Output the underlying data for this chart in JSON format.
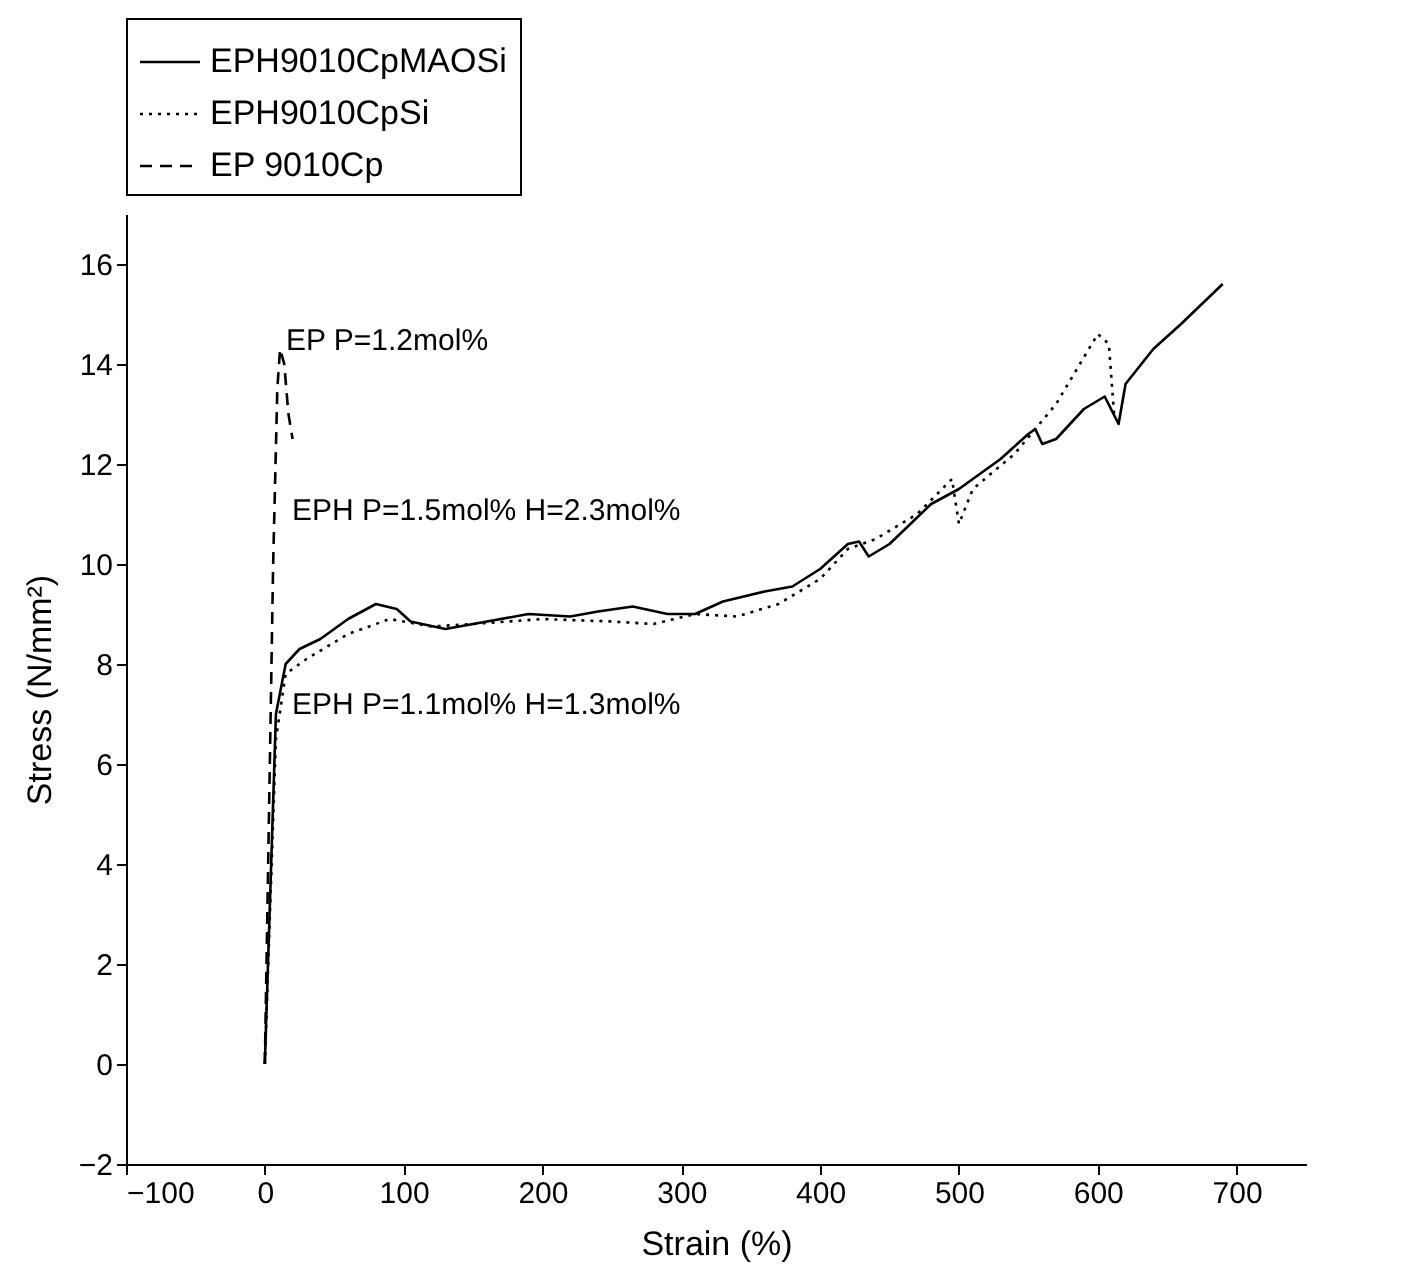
{
  "chart_data": {
    "type": "line",
    "xlabel": "Strain (%)",
    "ylabel": "Stress (N/mm²)",
    "xlim": [
      -100,
      750
    ],
    "xticks": [
      -100,
      0,
      100,
      200,
      300,
      400,
      500,
      600,
      700
    ],
    "ylim": [
      -2,
      17
    ],
    "yticks": [
      -2,
      0,
      2,
      4,
      6,
      8,
      10,
      12,
      14,
      16
    ],
    "grid": false,
    "legend": "top",
    "marker": "none",
    "series": [
      {
        "name": "EPH9010CpMAOSi",
        "color": "#000000",
        "line_style": "solid",
        "x": [
          0,
          8,
          15,
          25,
          40,
          60,
          80,
          95,
          105,
          130,
          160,
          190,
          220,
          240,
          265,
          290,
          310,
          330,
          360,
          380,
          400,
          420,
          428,
          435,
          450,
          480,
          500,
          530,
          550,
          555,
          560,
          570,
          590,
          605,
          615,
          620,
          640,
          660,
          690
        ],
        "values": [
          0,
          7,
          8,
          8.3,
          8.5,
          8.9,
          9.2,
          9.1,
          8.85,
          8.7,
          8.85,
          9.0,
          8.95,
          9.05,
          9.15,
          9.0,
          9.0,
          9.25,
          9.45,
          9.55,
          9.9,
          10.4,
          10.45,
          10.15,
          10.4,
          11.2,
          11.5,
          12.1,
          12.6,
          12.7,
          12.4,
          12.5,
          13.1,
          13.35,
          12.8,
          13.6,
          14.3,
          14.8,
          15.6
        ]
      },
      {
        "name": "EPH9010CpSi",
        "color": "#000000",
        "line_style": "dotted",
        "x": [
          0,
          8,
          15,
          30,
          60,
          90,
          120,
          150,
          200,
          250,
          280,
          310,
          340,
          370,
          400,
          420,
          440,
          470,
          495,
          500,
          510,
          540,
          570,
          600,
          608,
          612
        ],
        "values": [
          0,
          6.5,
          7.8,
          8.1,
          8.6,
          8.9,
          8.75,
          8.8,
          8.9,
          8.85,
          8.8,
          9.0,
          8.95,
          9.2,
          9.7,
          10.3,
          10.5,
          11.0,
          11.7,
          10.8,
          11.5,
          12.2,
          13.2,
          14.6,
          14.4,
          12.9
        ]
      },
      {
        "name": "EP 9010Cp",
        "color": "#000000",
        "line_style": "dashed",
        "x": [
          0,
          3,
          6,
          9,
          11,
          14,
          17,
          20
        ],
        "values": [
          0,
          5,
          10,
          13.5,
          14.3,
          14.0,
          13.0,
          12.5
        ]
      }
    ],
    "annotations": [
      "EP P=1.2mol%",
      "EPH P=1.5mol% H=2.3mol%",
      "EPH P=1.1mol% H=1.3mol%"
    ]
  }
}
